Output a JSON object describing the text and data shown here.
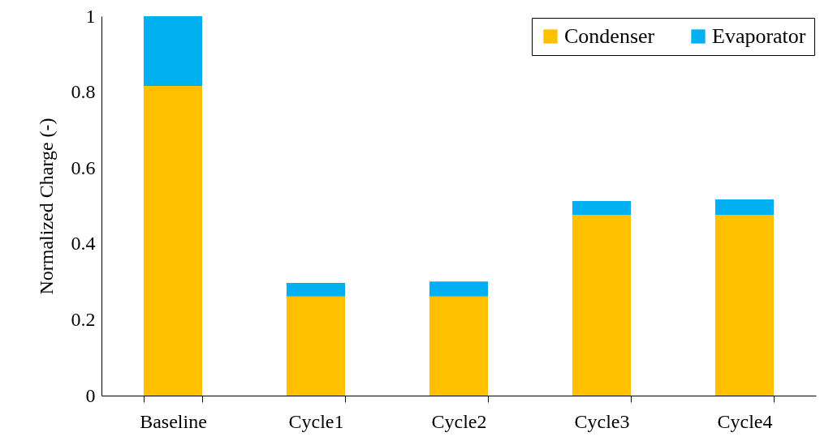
{
  "chart_data": {
    "type": "bar",
    "stacked": true,
    "ylabel": "Normalized Charge (-)",
    "categories": [
      "Baseline",
      "Cycle1",
      "Cycle2",
      "Cycle3",
      "Cycle4"
    ],
    "series": [
      {
        "name": "Condenser",
        "color": "#ffc000",
        "values": [
          0.816,
          0.261,
          0.261,
          0.476,
          0.476
        ]
      },
      {
        "name": "Evaporator",
        "color": "#00b0f0",
        "values": [
          0.184,
          0.036,
          0.04,
          0.037,
          0.041
        ]
      }
    ],
    "ylim": [
      0,
      1
    ],
    "yticks": [
      0,
      {
        "value": 0.2,
        "label": "0.2"
      },
      {
        "value": 0.4,
        "label": "0.4"
      },
      {
        "value": 0.6,
        "label": "0.6"
      },
      {
        "value": 0.8,
        "label": "0.8"
      },
      1
    ],
    "grid": false,
    "legend": "top right"
  }
}
